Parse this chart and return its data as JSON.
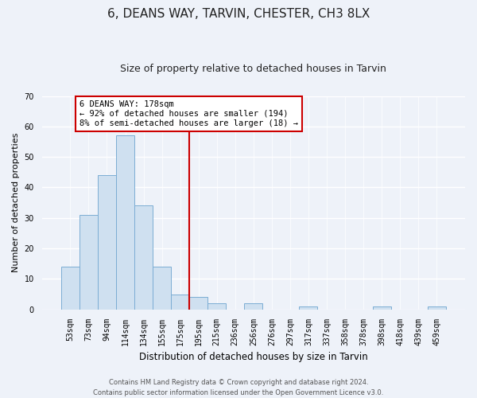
{
  "title": "6, DEANS WAY, TARVIN, CHESTER, CH3 8LX",
  "subtitle": "Size of property relative to detached houses in Tarvin",
  "xlabel": "Distribution of detached houses by size in Tarvin",
  "ylabel": "Number of detached properties",
  "bar_labels": [
    "53sqm",
    "73sqm",
    "94sqm",
    "114sqm",
    "134sqm",
    "155sqm",
    "175sqm",
    "195sqm",
    "215sqm",
    "236sqm",
    "256sqm",
    "276sqm",
    "297sqm",
    "317sqm",
    "337sqm",
    "358sqm",
    "378sqm",
    "398sqm",
    "418sqm",
    "439sqm",
    "459sqm"
  ],
  "bar_values": [
    14,
    31,
    44,
    57,
    34,
    14,
    5,
    4,
    2,
    0,
    2,
    0,
    0,
    1,
    0,
    0,
    0,
    1,
    0,
    0,
    1
  ],
  "bar_color": "#cfe0f0",
  "bar_edge_color": "#7badd4",
  "vline_x": 6.5,
  "vline_color": "#cc0000",
  "annotation_title": "6 DEANS WAY: 178sqm",
  "annotation_line1": "← 92% of detached houses are smaller (194)",
  "annotation_line2": "8% of semi-detached houses are larger (18) →",
  "annotation_box_facecolor": "#ffffff",
  "annotation_box_edgecolor": "#cc0000",
  "ylim": [
    0,
    70
  ],
  "yticks": [
    0,
    10,
    20,
    30,
    40,
    50,
    60,
    70
  ],
  "footer1": "Contains HM Land Registry data © Crown copyright and database right 2024.",
  "footer2": "Contains public sector information licensed under the Open Government Licence v3.0.",
  "bg_color": "#eef2f9",
  "grid_color": "#ffffff",
  "title_fontsize": 11,
  "subtitle_fontsize": 9,
  "ylabel_fontsize": 8,
  "xlabel_fontsize": 8.5,
  "tick_fontsize": 7,
  "annotation_fontsize": 7.5,
  "footer_fontsize": 6
}
